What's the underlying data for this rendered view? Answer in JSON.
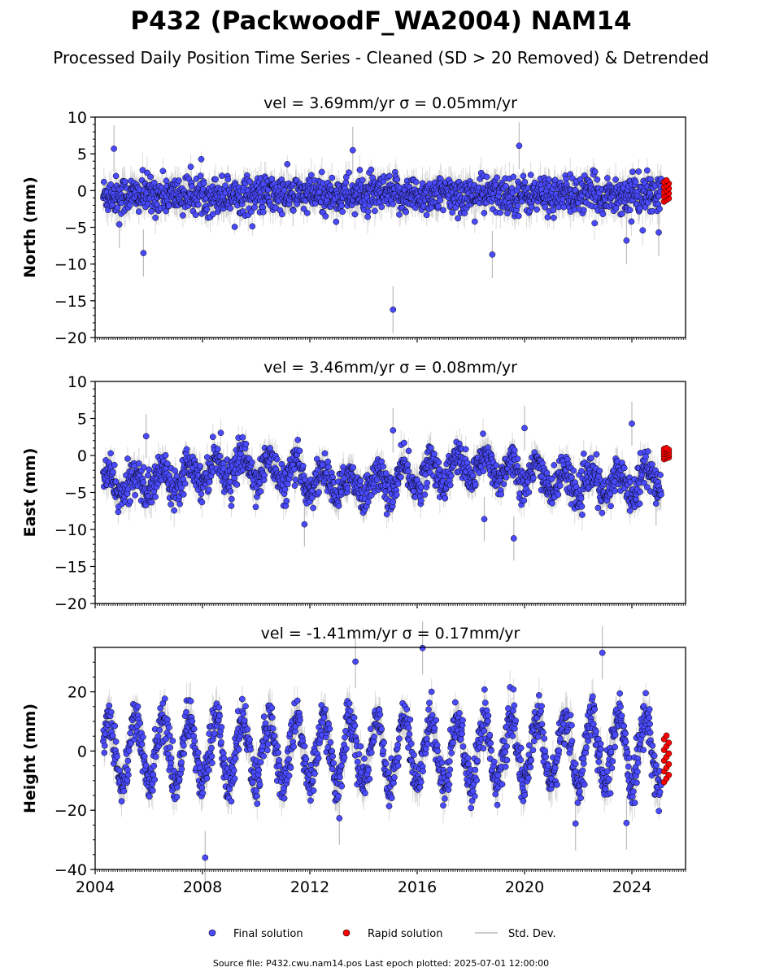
{
  "figure": {
    "title": "P432 (PackwoodF_WA2004) NAM14",
    "subtitle": "Processed Daily Position Time Series - Cleaned (SD > 20 Removed) & Detrended",
    "footer": "Source file: P432.cwu.nam14.pos  Last epoch plotted: 2025-07-01 12:00:00",
    "colors": {
      "final": "#4a4aff",
      "rapid": "#ff0000",
      "stddev": "#bbbbbb",
      "edge": "#000000"
    }
  },
  "legend": {
    "placement": "bottom-center",
    "final_label": "Final solution",
    "rapid_label": "Rapid solution",
    "stddev_label": "Std. Dev."
  },
  "chart_data": [
    {
      "type": "scatter",
      "title": "vel = 3.69mm/yr   σ = 0.05mm/yr",
      "ylabel": "North (mm)",
      "xlim": [
        2004,
        2026
      ],
      "ylim": [
        -20,
        10
      ],
      "yticks": [
        10,
        5,
        0,
        -5,
        -10,
        -15,
        -20
      ],
      "xticks": [
        2004,
        2008,
        2012,
        2016,
        2020,
        2024
      ],
      "final_range": [
        2004.3,
        2025.1
      ],
      "rapid_range": [
        2025.15,
        2025.5
      ],
      "amplitude": 0,
      "noise": 1.6,
      "offset": -0.6,
      "outliers": [
        {
          "x": 2015.1,
          "y": -16.2
        },
        {
          "x": 2005.8,
          "y": -8.5
        },
        {
          "x": 2019.8,
          "y": 6.1
        },
        {
          "x": 2013.6,
          "y": 5.5
        },
        {
          "x": 2004.7,
          "y": 5.7
        },
        {
          "x": 2018.8,
          "y": -8.7
        },
        {
          "x": 2023.8,
          "y": -6.8
        },
        {
          "x": 2025.0,
          "y": -5.7
        },
        {
          "x": 2004.9,
          "y": -4.6
        }
      ],
      "rapid_y": [
        -1.5,
        1.4
      ]
    },
    {
      "type": "scatter",
      "title": "vel = 3.46mm/yr   σ = 0.08mm/yr",
      "ylabel": "East (mm)",
      "xlim": [
        2004,
        2026
      ],
      "ylim": [
        -20,
        10
      ],
      "yticks": [
        10,
        5,
        0,
        -5,
        -10,
        -15,
        -20
      ],
      "xticks": [
        2004,
        2008,
        2012,
        2016,
        2020,
        2024
      ],
      "final_range": [
        2004.3,
        2025.1
      ],
      "rapid_range": [
        2025.15,
        2025.5
      ],
      "amplitude": 1.6,
      "noise": 1.5,
      "offset": -2.8,
      "outliers": [
        {
          "x": 2019.6,
          "y": -11.2
        },
        {
          "x": 2015.1,
          "y": 3.4
        },
        {
          "x": 2024.0,
          "y": 4.3
        },
        {
          "x": 2020.0,
          "y": 3.7
        },
        {
          "x": 2011.8,
          "y": -9.3
        },
        {
          "x": 2018.5,
          "y": -8.6
        },
        {
          "x": 2005.9,
          "y": 2.6
        },
        {
          "x": 2024.9,
          "y": -6.5
        }
      ],
      "rapid_y": [
        -0.5,
        1.0
      ]
    },
    {
      "type": "scatter",
      "title": "vel = -1.41mm/yr   σ = 0.17mm/yr",
      "ylabel": "Height (mm)",
      "xlim": [
        2004,
        2026
      ],
      "ylim": [
        -40,
        35
      ],
      "yticks": [
        20,
        0,
        -20,
        -40
      ],
      "xticks": [
        2004,
        2008,
        2012,
        2016,
        2020,
        2024
      ],
      "xticklabels": [
        "2004",
        "2008",
        "2012",
        "2016",
        "2020",
        "2024"
      ],
      "final_range": [
        2004.3,
        2025.1
      ],
      "rapid_range": [
        2025.15,
        2025.5
      ],
      "amplitude": 11,
      "noise": 4.5,
      "offset": 0,
      "outliers": [
        {
          "x": 2008.1,
          "y": -36.0
        },
        {
          "x": 2016.2,
          "y": 34.8
        },
        {
          "x": 2022.9,
          "y": 33.2
        },
        {
          "x": 2013.7,
          "y": 30.2
        },
        {
          "x": 2021.9,
          "y": -24.5
        },
        {
          "x": 2023.8,
          "y": -24.3
        },
        {
          "x": 2013.1,
          "y": -22.7
        }
      ],
      "rapid_y": [
        -10.5,
        5.2
      ]
    }
  ]
}
